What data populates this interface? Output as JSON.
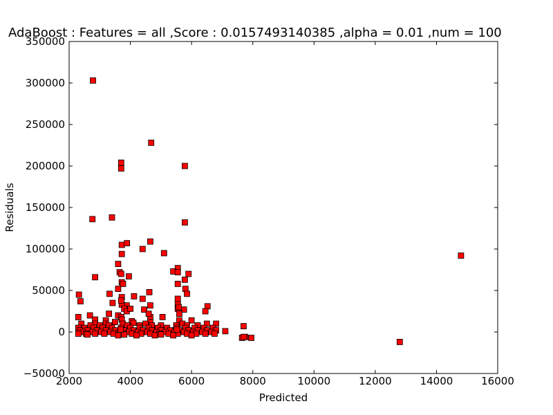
{
  "chart_data": {
    "type": "scatter",
    "title": "AdaBoost : Features = all ,Score : 0.0157493140385 ,alpha = 0.01 ,num = 100",
    "xlabel": "Predicted",
    "ylabel": "Residuals",
    "xlim": [
      2000,
      16000
    ],
    "ylim": [
      -50000,
      350000
    ],
    "xticks": [
      2000,
      4000,
      6000,
      8000,
      10000,
      12000,
      14000,
      16000
    ],
    "yticks": [
      -50000,
      0,
      50000,
      100000,
      150000,
      200000,
      250000,
      300000,
      350000
    ],
    "xtick_labels": [
      "2000",
      "4000",
      "6000",
      "8000",
      "10000",
      "12000",
      "14000",
      "16000"
    ],
    "ytick_labels": [
      "−50000",
      "0",
      "50000",
      "100000",
      "150000",
      "200000",
      "250000",
      "300000",
      "350000"
    ],
    "grid": false,
    "marker": "square",
    "marker_color": "#ff0000",
    "marker_edge_color": "#000000",
    "series": [
      {
        "x": [
          2780,
          4680,
          3700,
          3700,
          5780,
          2760,
          3400,
          5780,
          4650,
          3720,
          3890,
          4400,
          5100,
          3720,
          3600,
          5550,
          5400,
          5550,
          5900,
          3650,
          3700,
          3950,
          2850,
          14800,
          5780,
          5800,
          5550,
          3720,
          3760,
          3600,
          4620,
          5850,
          2320,
          3320,
          4120,
          2370,
          4400,
          3720,
          3420,
          3880,
          5550,
          4650,
          6520,
          3720,
          3800,
          3880,
          4000,
          3300,
          4450,
          5550,
          6450,
          2680,
          3600,
          5050,
          3700,
          4650,
          5750,
          3200,
          3720,
          2850,
          3500,
          4050,
          2300,
          4100,
          4650,
          5600,
          6000,
          2850,
          3200,
          3750,
          4500,
          5700,
          6500,
          2400,
          2700,
          3000,
          3300,
          3900,
          4300,
          4700,
          5000,
          5500,
          5850,
          6200,
          6800,
          2300,
          2500,
          2800,
          3100,
          3400,
          3700,
          4000,
          4300,
          4600,
          4900,
          5200,
          5500,
          5800,
          6100,
          6400,
          6700,
          7700,
          7100,
          2350,
          2600,
          2900,
          3200,
          3500,
          3800,
          4100,
          4400,
          4700,
          5000,
          5300,
          5600,
          5900,
          6200,
          6500,
          6800,
          2450,
          2750,
          3050,
          3350,
          3650,
          3950,
          4250,
          4550,
          4850,
          5150,
          5450,
          5750,
          6050,
          6350,
          6650,
          7650,
          7750,
          7950,
          12800,
          2300,
          2550,
          2850,
          3150,
          3450,
          3750,
          4050,
          4350,
          4650,
          4950,
          5250,
          5550,
          5850,
          6150,
          6450,
          6750,
          7700,
          3600,
          4200,
          4800,
          5400,
          2600,
          3800,
          5000,
          6000,
          3700,
          5550,
          5600,
          5580,
          4600,
          3680,
          5520
        ],
        "y": [
          303000,
          228000,
          204000,
          197000,
          200000,
          136000,
          138000,
          132000,
          109000,
          105000,
          107000,
          100000,
          95000,
          94000,
          82000,
          77000,
          73000,
          72000,
          70000,
          72000,
          70000,
          67000,
          66000,
          92000,
          63000,
          52000,
          58000,
          60000,
          58000,
          52000,
          48000,
          46000,
          45000,
          46000,
          43000,
          37000,
          40000,
          42000,
          35000,
          32000,
          35000,
          32000,
          31000,
          33000,
          28000,
          25000,
          28000,
          22000,
          27000,
          28000,
          25000,
          20000,
          20000,
          18000,
          18000,
          18000,
          27000,
          14000,
          15000,
          15000,
          12000,
          13000,
          18000,
          11000,
          12000,
          14000,
          14000,
          10000,
          10000,
          10000,
          10000,
          10000,
          10000,
          10000,
          8000,
          8000,
          8000,
          8000,
          8000,
          8000,
          8000,
          8000,
          8000,
          8000,
          10000,
          5000,
          5000,
          5000,
          5000,
          5000,
          5000,
          5000,
          5000,
          5000,
          5000,
          5000,
          5000,
          5000,
          5000,
          5000,
          5000,
          7000,
          1000,
          2000,
          2000,
          2000,
          2000,
          2000,
          2000,
          2000,
          2000,
          2000,
          2000,
          2000,
          2000,
          2000,
          2000,
          2000,
          2000,
          0,
          0,
          0,
          0,
          0,
          0,
          0,
          0,
          0,
          0,
          0,
          0,
          0,
          0,
          0,
          -7000,
          -6000,
          -7000,
          -12000,
          -2000,
          -2000,
          -2000,
          -2000,
          -2000,
          -2000,
          -2000,
          -2000,
          -2000,
          -2000,
          -2000,
          -2000,
          -2000,
          -2000,
          -2000,
          -2000,
          -6000,
          -4000,
          -4000,
          -4000,
          -4000,
          -3000,
          -3000,
          -3000,
          -4000,
          38000,
          40000,
          22000,
          30000,
          22000,
          3000,
          3000
        ]
      }
    ]
  }
}
